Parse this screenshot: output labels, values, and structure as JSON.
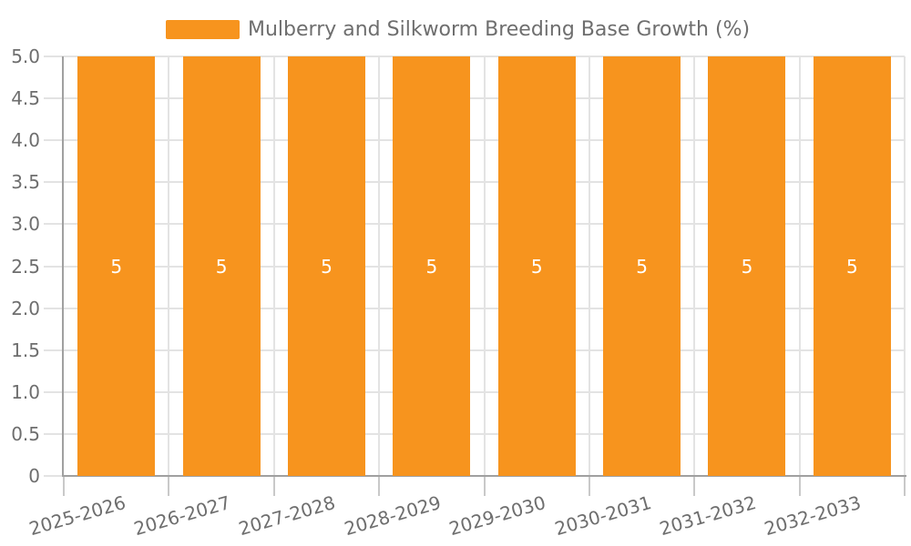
{
  "legend": {
    "label": "Mulberry and Silkworm Breeding Base Growth (%)"
  },
  "colors": {
    "bar": "#f7941e",
    "grid": "#e3e3e3",
    "axis": "#a0a0a0",
    "tick": "#c9c9c9",
    "axis_label_text": "#6e6e6e",
    "value_label_text": "#ffffff",
    "background": "#ffffff"
  },
  "chart_data": {
    "type": "bar",
    "title": "Mulberry and Silkworm Breeding Base Growth (%)",
    "xlabel": "",
    "ylabel": "",
    "categories": [
      "2025-2026",
      "2026-2027",
      "2027-2028",
      "2028-2029",
      "2029-2030",
      "2030-2031",
      "2031-2032",
      "2032-2033"
    ],
    "series": [
      {
        "name": "Mulberry and Silkworm Breeding Base Growth (%)",
        "values": [
          5,
          5,
          5,
          5,
          5,
          5,
          5,
          5
        ]
      }
    ],
    "value_labels": [
      "5",
      "5",
      "5",
      "5",
      "5",
      "5",
      "5",
      "5"
    ],
    "ylim": [
      0,
      5
    ],
    "yticks": [
      {
        "value": 0,
        "label": "0"
      },
      {
        "value": 0.5,
        "label": "0.5"
      },
      {
        "value": 1,
        "label": "1.0"
      },
      {
        "value": 1.5,
        "label": "1.5"
      },
      {
        "value": 2,
        "label": "2.0"
      },
      {
        "value": 2.5,
        "label": "2.5"
      },
      {
        "value": 3,
        "label": "3.0"
      },
      {
        "value": 3.5,
        "label": "3.5"
      },
      {
        "value": 4,
        "label": "4.0"
      },
      {
        "value": 4.5,
        "label": "4.5"
      },
      {
        "value": 5,
        "label": "5.0"
      }
    ],
    "grid": true,
    "legend_position": "top-center",
    "bar_color": "#f7941e"
  }
}
